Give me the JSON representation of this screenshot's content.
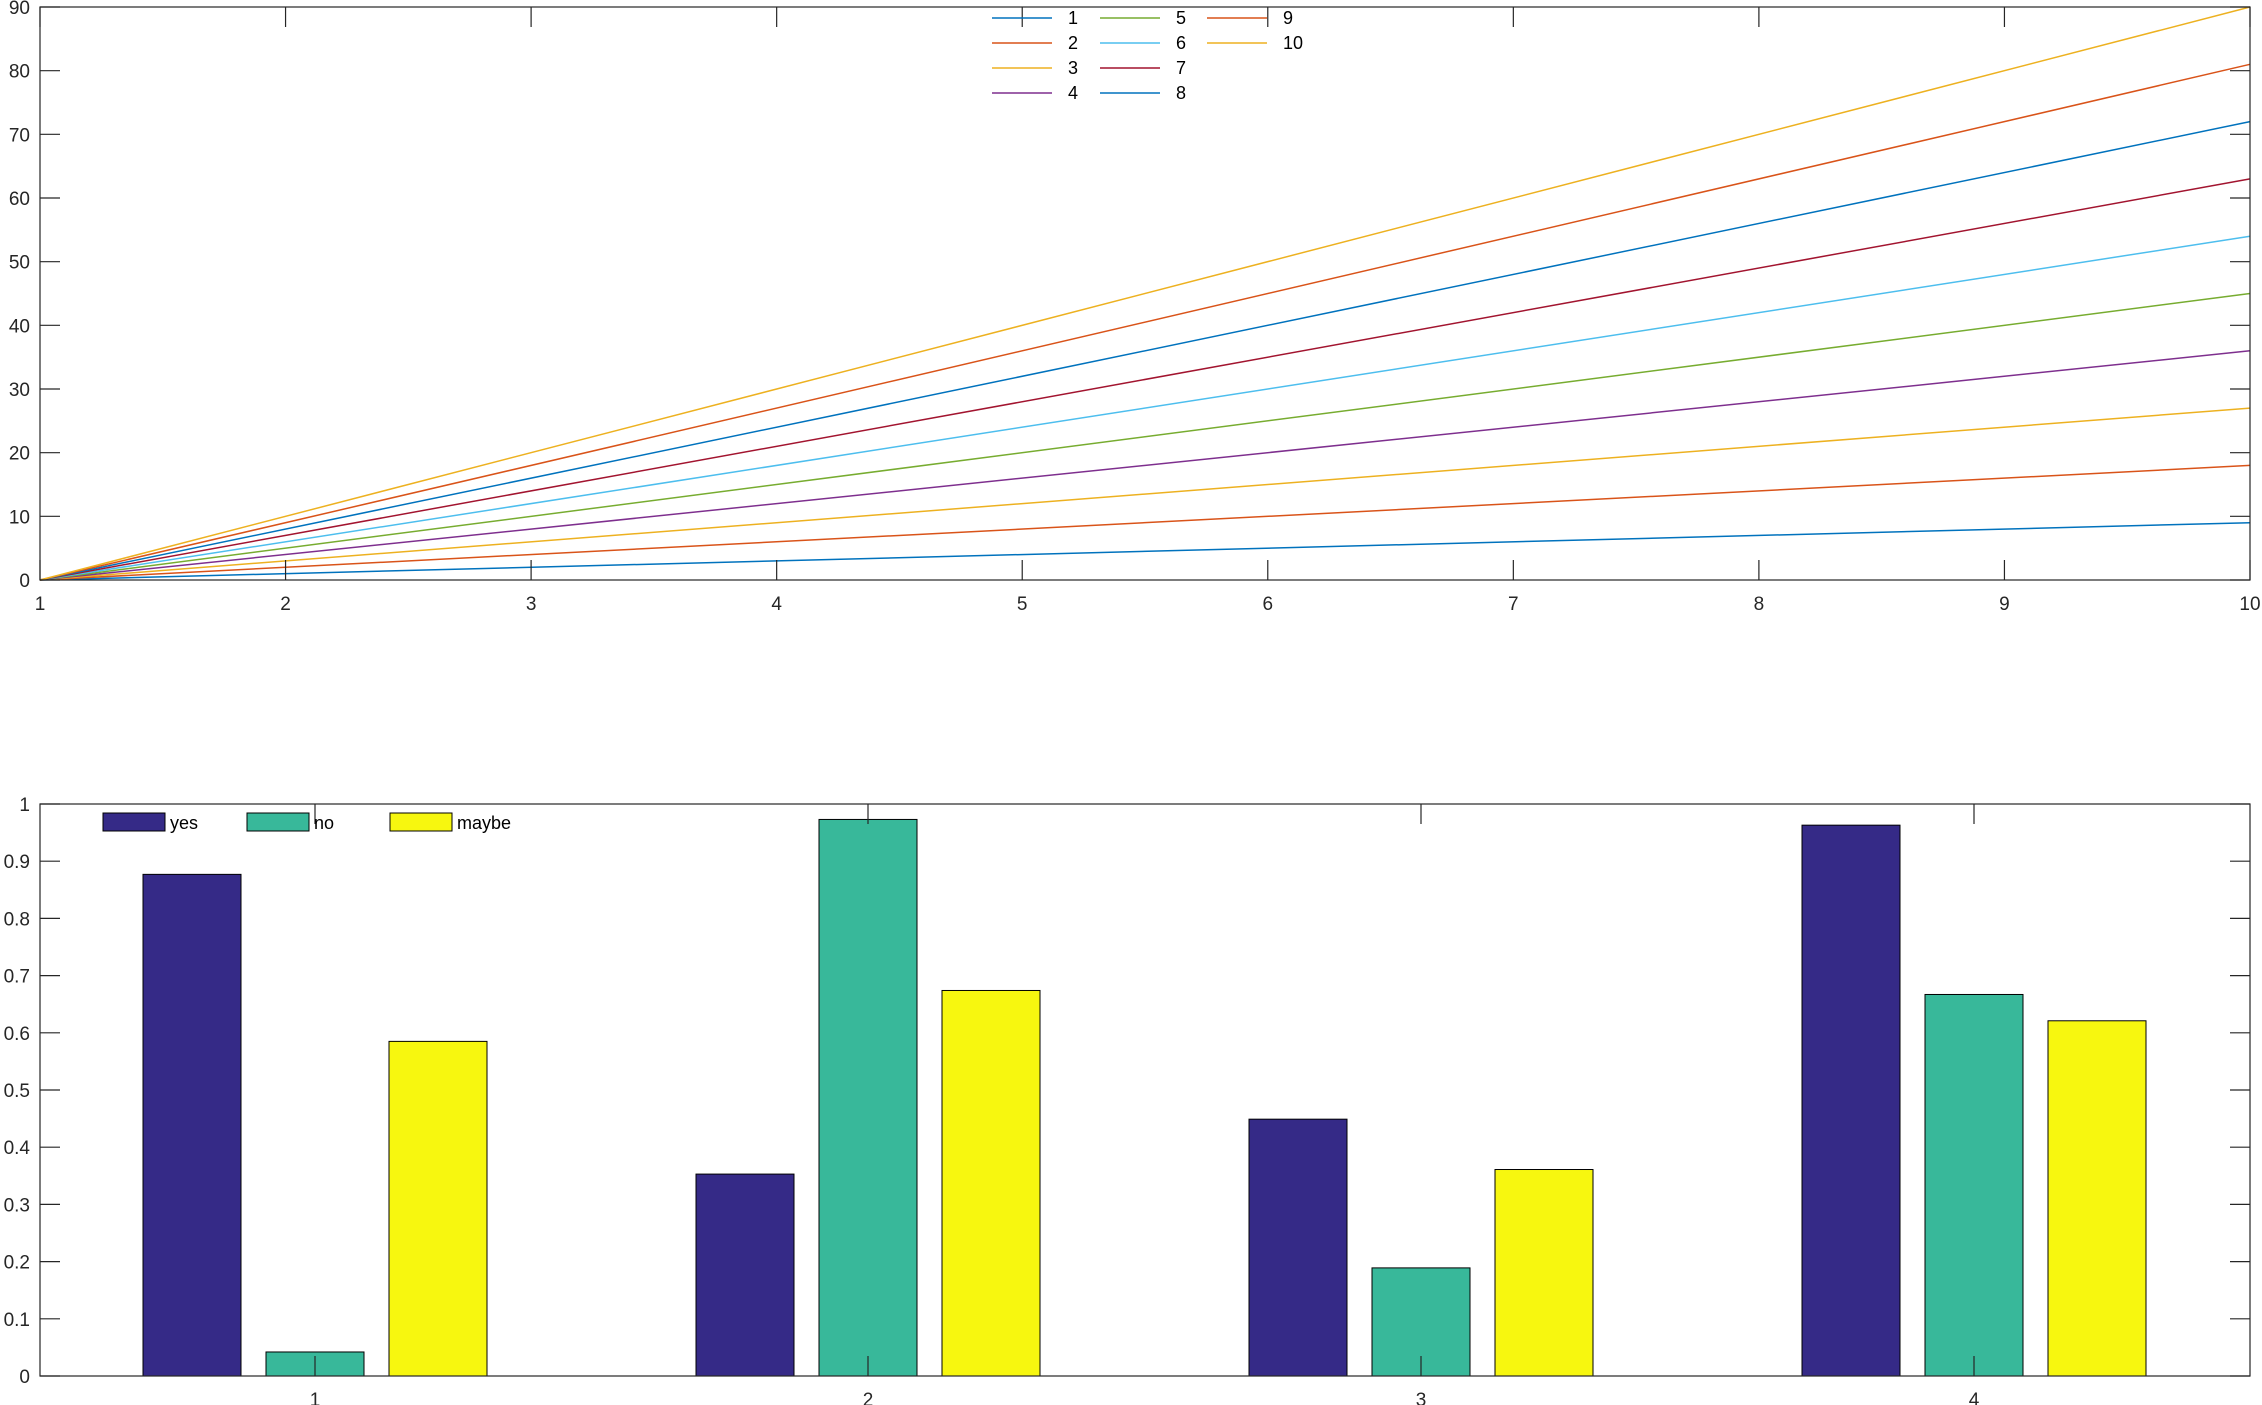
{
  "chart_data": [
    {
      "type": "line",
      "x": [
        1,
        10
      ],
      "xlim": [
        1,
        10
      ],
      "ylim": [
        0,
        90
      ],
      "xticks": [
        "1",
        "2",
        "3",
        "4",
        "5",
        "6",
        "7",
        "8",
        "9",
        "10"
      ],
      "yticks": [
        "0",
        "10",
        "20",
        "30",
        "40",
        "50",
        "60",
        "70",
        "80",
        "90"
      ],
      "grid": false,
      "legend_position": "top-center",
      "series": [
        {
          "name": "1",
          "values": [
            0,
            9
          ],
          "color": "#0072BD"
        },
        {
          "name": "2",
          "values": [
            0,
            18
          ],
          "color": "#D95319"
        },
        {
          "name": "3",
          "values": [
            0,
            27
          ],
          "color": "#EDB120"
        },
        {
          "name": "4",
          "values": [
            0,
            36
          ],
          "color": "#7E2F8E"
        },
        {
          "name": "5",
          "values": [
            0,
            45
          ],
          "color": "#77AC30"
        },
        {
          "name": "6",
          "values": [
            0,
            54
          ],
          "color": "#4DBEEE"
        },
        {
          "name": "7",
          "values": [
            0,
            63
          ],
          "color": "#A2142F"
        },
        {
          "name": "8",
          "values": [
            0,
            72
          ],
          "color": "#0072BD"
        },
        {
          "name": "9",
          "values": [
            0,
            81
          ],
          "color": "#D95319"
        },
        {
          "name": "10",
          "values": [
            0,
            90
          ],
          "color": "#EDB120"
        }
      ]
    },
    {
      "type": "bar",
      "categories": [
        "1",
        "2",
        "3",
        "4"
      ],
      "ylim": [
        0,
        1
      ],
      "yticks": [
        "0",
        "0.1",
        "0.2",
        "0.3",
        "0.4",
        "0.5",
        "0.6",
        "0.7",
        "0.8",
        "0.9",
        "1"
      ],
      "grid": false,
      "legend_position": "top-left",
      "series": [
        {
          "name": "yes",
          "values": [
            0.877,
            0.353,
            0.449,
            0.963
          ],
          "color": "#352A87"
        },
        {
          "name": "no",
          "values": [
            0.042,
            0.973,
            0.189,
            0.667
          ],
          "color": "#38B89A"
        },
        {
          "name": "maybe",
          "values": [
            0.585,
            0.674,
            0.361,
            0.621
          ],
          "color": "#F7F70F"
        }
      ]
    }
  ]
}
